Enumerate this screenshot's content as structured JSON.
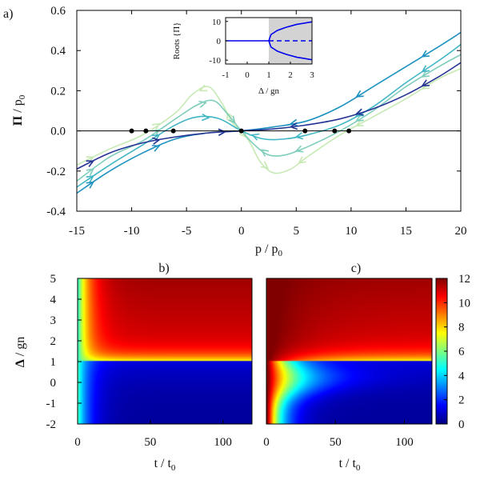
{
  "chart_data": [
    {
      "panel": "a)",
      "type": "line",
      "xlabel": "p / p0",
      "ylabel": "Π / p0",
      "xlim": [
        -15,
        20
      ],
      "ylim": [
        -0.4,
        0.6
      ],
      "xticks": [
        -15,
        -10,
        -5,
        0,
        5,
        10,
        15,
        20
      ],
      "yticks": [
        -0.4,
        -0.2,
        0.0,
        0.2,
        0.4,
        0.6
      ],
      "fixed_points": [
        [
          -10.0,
          0.0
        ],
        [
          -8.7,
          0.0
        ],
        [
          -6.2,
          0.0
        ],
        [
          0.0,
          0.0
        ],
        [
          5.8,
          0.0
        ],
        [
          8.5,
          0.0
        ],
        [
          9.8,
          0.0
        ]
      ],
      "series": [
        {
          "color": "#c7e9b4",
          "x": [
            -15,
            -12,
            -9,
            -6,
            -4.5,
            -3,
            -1.8,
            -0.8,
            0,
            0.8,
            1.8,
            3,
            4.5,
            6,
            9,
            12,
            15,
            18,
            20
          ],
          "y": [
            -0.17,
            -0.09,
            -0.02,
            0.09,
            0.18,
            0.22,
            0.14,
            0.04,
            0.0,
            -0.06,
            -0.16,
            -0.21,
            -0.19,
            -0.13,
            -0.02,
            0.07,
            0.16,
            0.26,
            0.31
          ]
        },
        {
          "color": "#7fcdbb",
          "x": [
            -15,
            -12,
            -9,
            -6,
            -4,
            -2.5,
            -1.2,
            0,
            1.2,
            2.5,
            4,
            6,
            9,
            12,
            15,
            18,
            20
          ],
          "y": [
            -0.25,
            -0.13,
            -0.05,
            0.06,
            0.13,
            0.15,
            0.08,
            0.0,
            -0.07,
            -0.12,
            -0.12,
            -0.08,
            0.0,
            0.1,
            0.22,
            0.32,
            0.38
          ]
        },
        {
          "color": "#41b6c4",
          "x": [
            -15,
            -12,
            -9,
            -6,
            -4,
            -2,
            0,
            2,
            4,
            6,
            9,
            12,
            15,
            18,
            20
          ],
          "y": [
            -0.28,
            -0.17,
            -0.07,
            0.03,
            0.07,
            0.06,
            0.0,
            -0.04,
            -0.04,
            -0.02,
            0.03,
            0.12,
            0.24,
            0.35,
            0.43
          ]
        },
        {
          "color": "#1d91c0",
          "x": [
            -15,
            -12,
            -9,
            -6,
            -3,
            0,
            3,
            6,
            9,
            12,
            15,
            18,
            20
          ],
          "y": [
            -0.31,
            -0.2,
            -0.11,
            -0.04,
            -0.01,
            0.0,
            0.02,
            0.05,
            0.12,
            0.22,
            0.32,
            0.42,
            0.49
          ]
        },
        {
          "color": "#253494",
          "x": [
            -15,
            -12,
            -9,
            -6,
            -3,
            0,
            3,
            6,
            9,
            12,
            15,
            18,
            20
          ],
          "y": [
            -0.19,
            -0.11,
            -0.06,
            -0.03,
            -0.01,
            0.0,
            0.01,
            0.03,
            0.06,
            0.11,
            0.18,
            0.27,
            0.34
          ]
        }
      ]
    },
    {
      "panel": "a) inset",
      "type": "line",
      "xlabel": "Δ / gn",
      "ylabel": "Roots {Π}",
      "xlim": [
        -1,
        3
      ],
      "ylim": [
        -12,
        12
      ],
      "xticks": [
        -1,
        0,
        1,
        2,
        3
      ],
      "yticks": [
        -10,
        0,
        10
      ],
      "shaded_from": 1,
      "series": [
        {
          "style": "solid",
          "x": [
            -1,
            0,
            1
          ],
          "y": [
            0,
            0,
            0
          ]
        },
        {
          "style": "dashed",
          "x": [
            1,
            2,
            3
          ],
          "y": [
            0,
            0,
            0
          ]
        },
        {
          "style": "solid",
          "x": [
            1,
            1.1,
            1.4,
            1.8,
            2.3,
            3
          ],
          "y": [
            0,
            3.2,
            5.4,
            7.0,
            8.5,
            9.8
          ]
        },
        {
          "style": "solid",
          "x": [
            1,
            1.1,
            1.4,
            1.8,
            2.3,
            3
          ],
          "y": [
            0,
            -3.2,
            -5.4,
            -7.0,
            -8.5,
            -9.8
          ]
        }
      ]
    },
    {
      "panel": "b)",
      "type": "heatmap",
      "xlabel": "t / t0",
      "ylabel": "Δ / gn",
      "xlim": [
        0,
        120
      ],
      "ylim": [
        -2,
        5
      ],
      "xticks": [
        0,
        50,
        100
      ],
      "yticks": [
        -2,
        -1,
        0,
        1,
        2,
        3,
        4,
        5
      ]
    },
    {
      "panel": "c)",
      "type": "heatmap",
      "xlabel": "t / t0",
      "xlim": [
        0,
        120
      ],
      "ylim": [
        -2,
        5
      ],
      "xticks": [
        0,
        50,
        100
      ],
      "colorbar": {
        "range": [
          0,
          12
        ],
        "ticks": [
          0,
          2,
          4,
          6,
          8,
          10,
          12
        ]
      }
    }
  ]
}
